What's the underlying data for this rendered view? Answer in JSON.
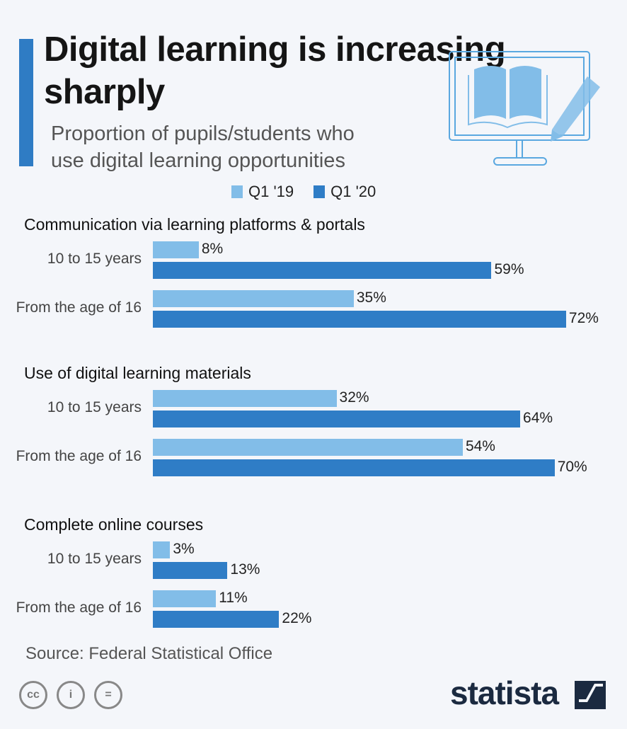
{
  "title": "Digital learning is increasing sharply",
  "subtitle_line1": "Proportion of pupils/students who",
  "subtitle_line2": "use digital learning opportunities",
  "source": "Source: Federal Statistical Office",
  "brand": "statista",
  "license_icons": [
    "cc",
    "by",
    "nd"
  ],
  "colors": {
    "q1_19": "#82bde8",
    "q1_20": "#2f7dc6",
    "accent": "#2f7cc4"
  },
  "chart_data": {
    "type": "bar",
    "orientation": "horizontal",
    "title": "Digital learning is increasing sharply",
    "unit": "%",
    "legend": [
      "Q1 '19",
      "Q1 '20"
    ],
    "legend_placement": "top",
    "xlim": [
      0,
      100
    ],
    "groups": [
      {
        "name": "Communication via learning platforms & portals",
        "categories": [
          "10 to 15 years",
          "From the age of 16"
        ],
        "series": [
          {
            "name": "Q1 '19",
            "values": [
              8,
              35
            ]
          },
          {
            "name": "Q1 '20",
            "values": [
              59,
              72
            ]
          }
        ]
      },
      {
        "name": "Use of digital learning materials",
        "categories": [
          "10 to 15 years",
          "From the age of 16"
        ],
        "series": [
          {
            "name": "Q1 '19",
            "values": [
              32,
              54
            ]
          },
          {
            "name": "Q1 '20",
            "values": [
              64,
              70
            ]
          }
        ]
      },
      {
        "name": "Complete online courses",
        "categories": [
          "10 to 15 years",
          "From the age of 16"
        ],
        "series": [
          {
            "name": "Q1 '19",
            "values": [
              3,
              11
            ]
          },
          {
            "name": "Q1 '20",
            "values": [
              13,
              22
            ]
          }
        ]
      }
    ]
  }
}
